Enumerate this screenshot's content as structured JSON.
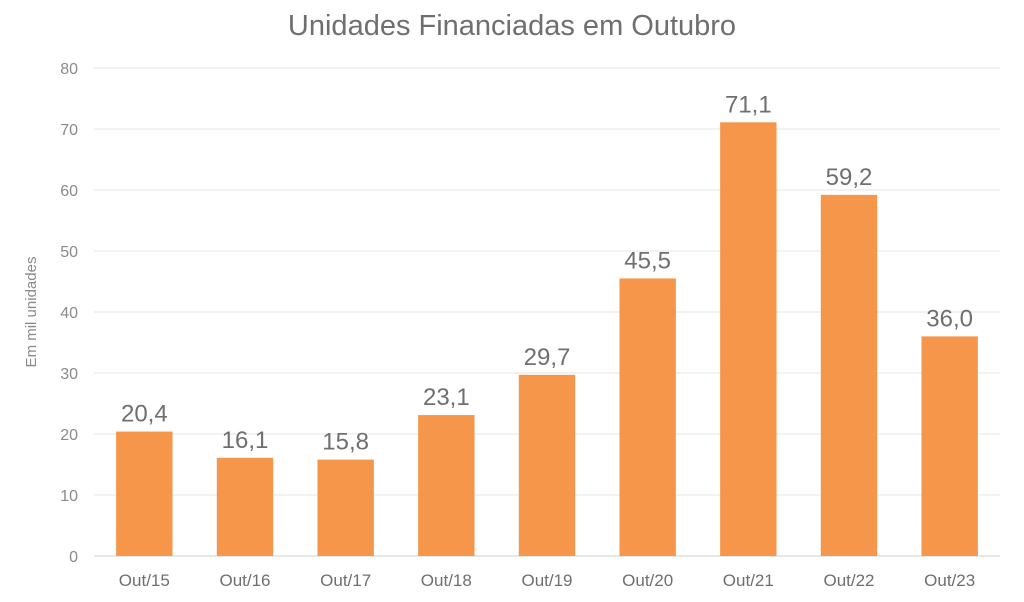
{
  "chart_data": {
    "type": "bar",
    "title": "Unidades Financiadas em Outubro",
    "xlabel": "",
    "ylabel": "Em mil unidades",
    "categories": [
      "Out/15",
      "Out/16",
      "Out/17",
      "Out/18",
      "Out/19",
      "Out/20",
      "Out/21",
      "Out/22",
      "Out/23"
    ],
    "values": [
      20.4,
      16.1,
      15.8,
      23.1,
      29.7,
      45.5,
      71.1,
      59.2,
      36.0
    ],
    "value_labels": [
      "20,4",
      "16,1",
      "15,8",
      "23,1",
      "29,7",
      "45,5",
      "71,1",
      "59,2",
      "36,0"
    ],
    "yticks": [
      0,
      10,
      20,
      30,
      40,
      50,
      60,
      70,
      80
    ],
    "ylim": [
      0,
      80
    ],
    "grid": true,
    "legend": "none",
    "colors": {
      "bar": "#F5964A",
      "grid": "#e6e6e6",
      "text": "#6f6f6f"
    }
  }
}
